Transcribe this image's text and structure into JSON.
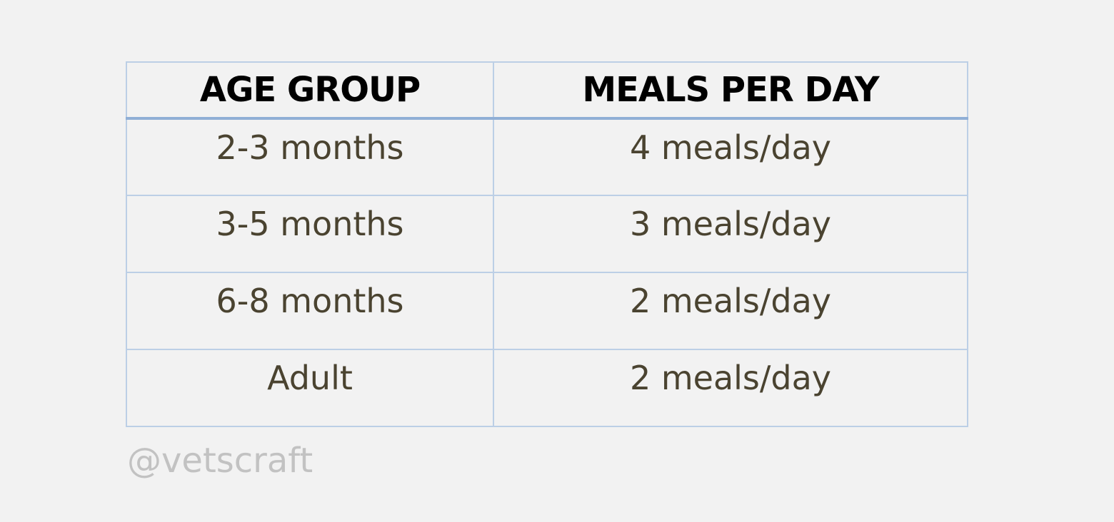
{
  "table": {
    "headers": [
      "AGE GROUP",
      "MEALS PER DAY"
    ],
    "rows": [
      [
        "2-3 months",
        "4 meals/day"
      ],
      [
        "3-5 months",
        "3 meals/day"
      ],
      [
        "6-8 months",
        "2 meals/day"
      ],
      [
        "Adult",
        "2 meals/day"
      ]
    ]
  },
  "watermark": "@vetscraft",
  "colors": {
    "background": "#f2f2f2",
    "border": "#bccfe6",
    "header_rule": "#90afd6",
    "header_text": "#000000",
    "cell_text": "#4a4330",
    "watermark_text": "#c2c2c2"
  }
}
